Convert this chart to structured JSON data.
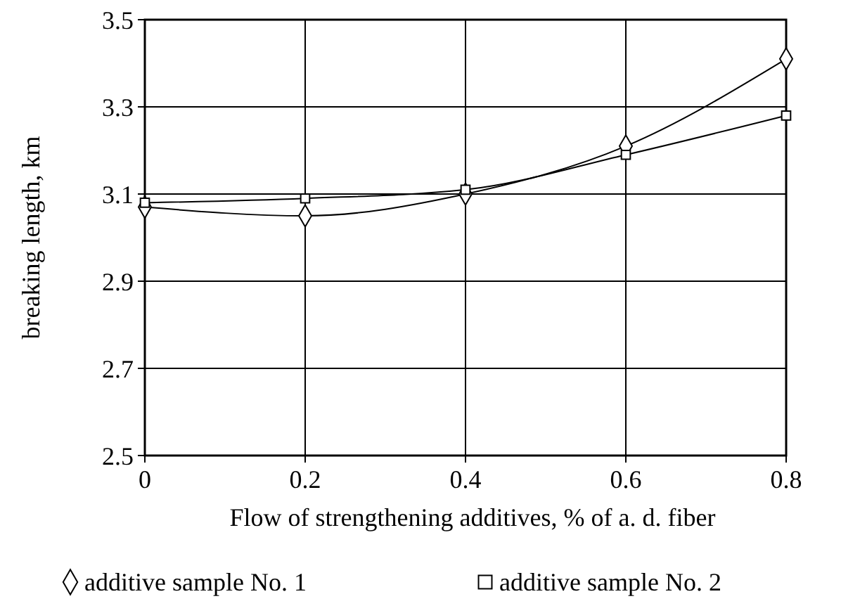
{
  "chart_data": {
    "type": "line",
    "xlabel": "Flow of strengthening additives, % of a. d. fiber",
    "ylabel": "breaking length, km",
    "x": [
      0,
      0.2,
      0.4,
      0.6,
      0.8
    ],
    "xlim": [
      0,
      0.8
    ],
    "xticks": [
      0,
      0.2,
      0.4,
      0.6,
      0.8
    ],
    "ylim": [
      2.5,
      3.5
    ],
    "yticks": [
      2.5,
      2.7,
      2.9,
      3.1,
      3.3,
      3.5
    ],
    "grid": true,
    "legend": "bottom",
    "series": [
      {
        "name": "additive sample No. 1",
        "color": "#000000",
        "marker": "diamond",
        "values": [
          3.07,
          3.05,
          3.1,
          3.21,
          3.41
        ]
      },
      {
        "name": "additive sample No. 2",
        "color": "#000000",
        "marker": "square",
        "values": [
          3.08,
          3.09,
          3.11,
          3.19,
          3.28
        ]
      }
    ]
  }
}
